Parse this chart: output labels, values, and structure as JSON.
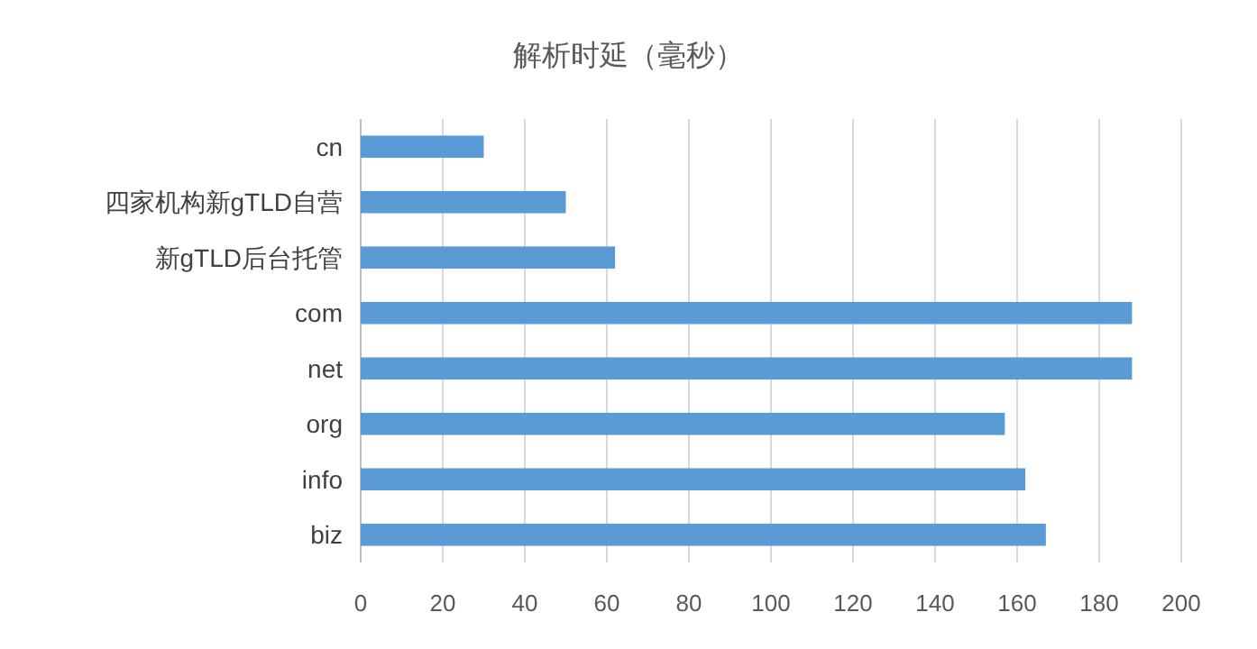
{
  "chart_data": {
    "type": "bar",
    "orientation": "horizontal",
    "title": "解析时延（毫秒）",
    "categories": [
      "cn",
      "四家机构新gTLD自营",
      "新gTLD后台托管",
      "com",
      "net",
      "org",
      "info",
      "biz"
    ],
    "values": [
      30,
      50,
      62,
      188,
      188,
      157,
      162,
      167
    ],
    "color": "#5b9bd5",
    "xlim": [
      0,
      200
    ],
    "xticks": [
      0,
      20,
      40,
      60,
      80,
      100,
      120,
      140,
      160,
      180,
      200
    ],
    "grid": "x"
  }
}
